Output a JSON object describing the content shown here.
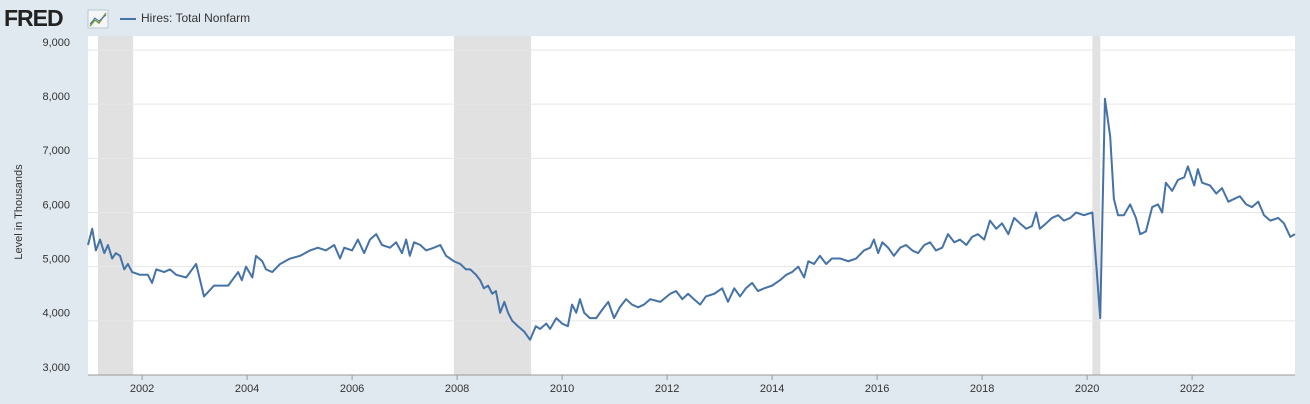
{
  "logo": "FRED",
  "chart_data": {
    "type": "line",
    "y_label": "Level in Thousands",
    "series": [
      {
        "name": "Hires: Total Nonfarm",
        "color": "#4572a7",
        "x": [
          2000.97,
          2001.05,
          2001.12,
          2001.2,
          2001.28,
          2001.35,
          2001.43,
          2001.5,
          2001.58,
          2001.66,
          2001.73,
          2001.81,
          2001.96,
          2002.11,
          2002.19,
          2002.27,
          2002.42,
          2002.53,
          2002.65,
          2002.84,
          2003.03,
          2003.18,
          2003.37,
          2003.52,
          2003.64,
          2003.83,
          2003.9,
          2003.98,
          2004.1,
          2004.17,
          2004.29,
          2004.36,
          2004.48,
          2004.63,
          2004.82,
          2005.01,
          2005.2,
          2005.35,
          2005.5,
          2005.66,
          2005.77,
          2005.85,
          2006.0,
          2006.11,
          2006.23,
          2006.34,
          2006.46,
          2006.57,
          2006.72,
          2006.84,
          2006.95,
          2007.03,
          2007.1,
          2007.18,
          2007.3,
          2007.41,
          2007.56,
          2007.68,
          2007.79,
          2007.94,
          2008.06,
          2008.17,
          2008.25,
          2008.36,
          2008.44,
          2008.51,
          2008.59,
          2008.67,
          2008.74,
          2008.82,
          2008.9,
          2008.97,
          2009.05,
          2009.16,
          2009.28,
          2009.39,
          2009.5,
          2009.58,
          2009.7,
          2009.77,
          2009.89,
          2010.0,
          2010.11,
          2010.19,
          2010.27,
          2010.34,
          2010.42,
          2010.53,
          2010.65,
          2010.76,
          2010.88,
          2010.99,
          2011.1,
          2011.22,
          2011.33,
          2011.45,
          2011.56,
          2011.68,
          2011.87,
          2012.06,
          2012.17,
          2012.29,
          2012.4,
          2012.51,
          2012.63,
          2012.74,
          2012.9,
          2013.05,
          2013.16,
          2013.28,
          2013.39,
          2013.5,
          2013.62,
          2013.73,
          2013.85,
          2014.0,
          2014.15,
          2014.27,
          2014.38,
          2014.5,
          2014.61,
          2014.69,
          2014.8,
          2014.91,
          2015.03,
          2015.14,
          2015.3,
          2015.45,
          2015.6,
          2015.75,
          2015.87,
          2015.94,
          2016.02,
          2016.1,
          2016.21,
          2016.32,
          2016.44,
          2016.55,
          2016.67,
          2016.78,
          2016.9,
          2017.01,
          2017.12,
          2017.24,
          2017.35,
          2017.47,
          2017.58,
          2017.7,
          2017.81,
          2017.92,
          2018.04,
          2018.15,
          2018.27,
          2018.38,
          2018.5,
          2018.61,
          2018.72,
          2018.84,
          2018.95,
          2019.03,
          2019.1,
          2019.22,
          2019.33,
          2019.45,
          2019.56,
          2019.68,
          2019.79,
          2019.94,
          2020.1,
          2020.25,
          2020.34,
          2020.44,
          2020.51,
          2020.59,
          2020.7,
          2020.82,
          2020.93,
          2021.01,
          2021.12,
          2021.24,
          2021.35,
          2021.43,
          2021.5,
          2021.62,
          2021.73,
          2021.85,
          2021.92,
          2022.04,
          2022.11,
          2022.19,
          2022.34,
          2022.46,
          2022.57,
          2022.69,
          2022.8,
          2022.91,
          2023.03,
          2023.14,
          2023.26,
          2023.37,
          2023.49,
          2023.64,
          2023.75,
          2023.87,
          2023.96
        ],
        "values": [
          5400,
          5700,
          5300,
          5500,
          5250,
          5400,
          5150,
          5250,
          5200,
          4950,
          5050,
          4900,
          4850,
          4850,
          4700,
          4950,
          4900,
          4950,
          4850,
          4800,
          5050,
          4450,
          4650,
          4650,
          4650,
          4900,
          4750,
          5000,
          4800,
          5200,
          5100,
          4950,
          4900,
          5050,
          5150,
          5200,
          5300,
          5350,
          5300,
          5400,
          5150,
          5350,
          5300,
          5500,
          5250,
          5500,
          5600,
          5400,
          5350,
          5450,
          5250,
          5500,
          5200,
          5450,
          5400,
          5300,
          5350,
          5400,
          5200,
          5100,
          5050,
          4950,
          4950,
          4850,
          4750,
          4600,
          4650,
          4500,
          4550,
          4150,
          4350,
          4150,
          4000,
          3900,
          3800,
          3650,
          3900,
          3850,
          3950,
          3850,
          4050,
          3950,
          3900,
          4300,
          4150,
          4400,
          4150,
          4050,
          4050,
          4200,
          4350,
          4050,
          4250,
          4400,
          4300,
          4250,
          4300,
          4400,
          4350,
          4500,
          4550,
          4400,
          4500,
          4400,
          4300,
          4450,
          4500,
          4600,
          4350,
          4600,
          4450,
          4600,
          4700,
          4550,
          4600,
          4650,
          4750,
          4850,
          4900,
          5000,
          4800,
          5100,
          5050,
          5200,
          5050,
          5150,
          5150,
          5100,
          5150,
          5300,
          5350,
          5500,
          5250,
          5450,
          5350,
          5200,
          5350,
          5400,
          5300,
          5250,
          5400,
          5450,
          5300,
          5350,
          5600,
          5450,
          5500,
          5400,
          5550,
          5600,
          5500,
          5850,
          5700,
          5800,
          5600,
          5900,
          5800,
          5700,
          5750,
          6000,
          5700,
          5800,
          5900,
          5950,
          5850,
          5900,
          6000,
          5950,
          6000,
          4050,
          8100,
          7400,
          6250,
          5950,
          5950,
          6150,
          5900,
          5600,
          5650,
          6100,
          6150,
          6000,
          6550,
          6400,
          6600,
          6650,
          6850,
          6500,
          6800,
          6550,
          6500,
          6350,
          6450,
          6200,
          6250,
          6300,
          6150,
          6100,
          6200,
          5950,
          5850,
          5900,
          5800,
          5550,
          5600
        ]
      }
    ],
    "shaded_periods": [
      [
        2001.16,
        2001.83
      ],
      [
        2007.94,
        2009.41
      ],
      [
        2020.1,
        2020.25
      ]
    ],
    "shade_color": "#e1e1e1",
    "xlim": [
      2000.97,
      2023.96
    ],
    "xticks": [
      2002,
      2004,
      2006,
      2008,
      2010,
      2012,
      2014,
      2016,
      2018,
      2020,
      2022
    ],
    "ylim": [
      3000,
      9000
    ],
    "yticks": [
      {
        "value": 3000,
        "label": "3,000"
      },
      {
        "value": 4000,
        "label": "4,000"
      },
      {
        "value": 5000,
        "label": "5,000"
      },
      {
        "value": 6000,
        "label": "6,000"
      },
      {
        "value": 7000,
        "label": "7,000"
      },
      {
        "value": 8000,
        "label": "8,000"
      },
      {
        "value": 9000,
        "label": "9,000"
      }
    ],
    "grid": true
  }
}
